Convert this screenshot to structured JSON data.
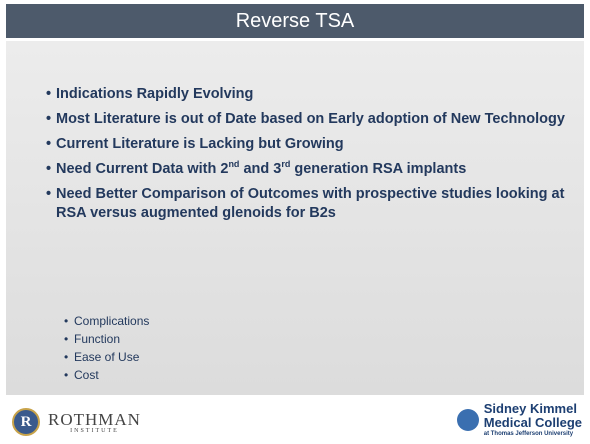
{
  "title": "Reverse TSA",
  "bullets": [
    [
      "Indications Rapidly Evolving"
    ],
    [
      "Most Literature is out  of Date based on Early adoption of New Technology"
    ],
    [
      "Current Literature is Lacking but Growing"
    ],
    [
      "Need Current Data with ",
      "2",
      "nd",
      " and ",
      "3",
      "rd",
      " generation RSA implants"
    ],
    [
      "Need Better Comparison of Outcomes with prospective studies looking at RSA versus augmented glenoids for B2s"
    ]
  ],
  "sub_bullets": [
    "Complications",
    "Function",
    "Ease of Use",
    "Cost"
  ],
  "footer": {
    "left_logo": {
      "mark": "R",
      "name": "ROTHMAN",
      "subtitle": "INSTITUTE"
    },
    "right_logo": {
      "line1": "Sidney Kimmel",
      "line2": "Medical College",
      "line3": "at Thomas Jefferson University"
    }
  }
}
